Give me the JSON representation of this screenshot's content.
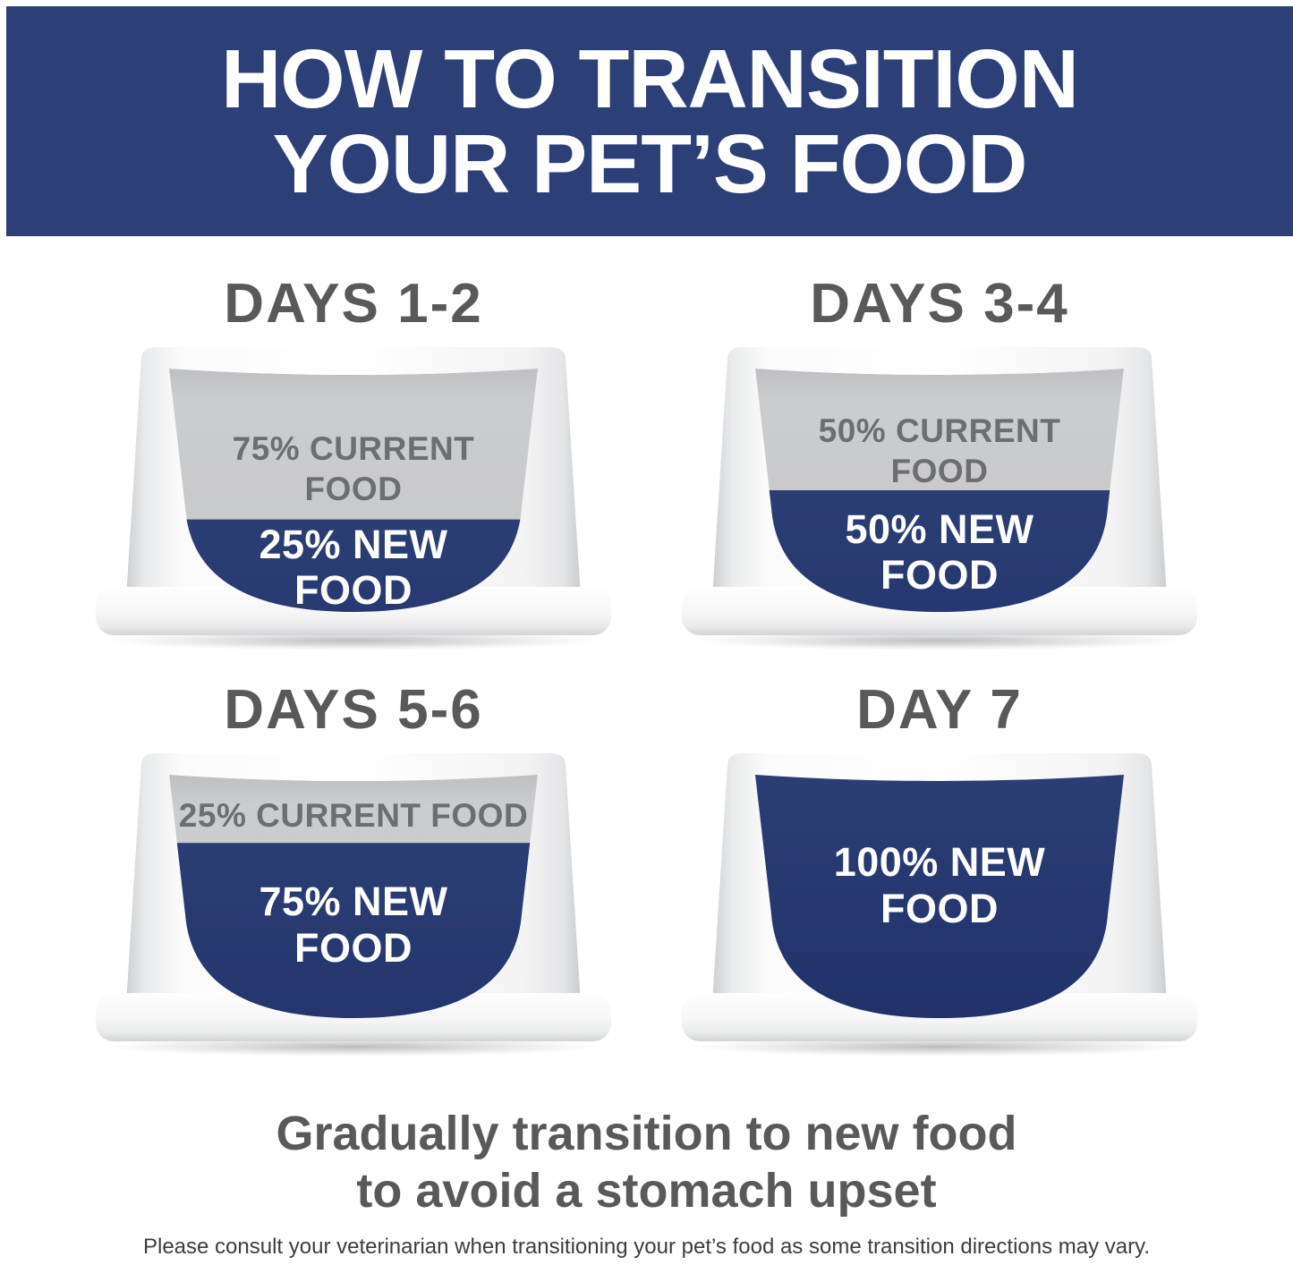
{
  "banner": {
    "line1": "HOW TO TRANSITION",
    "line2": "YOUR PET’S FOOD"
  },
  "panels": [
    {
      "heading": "DAYS 1-2",
      "current": {
        "line1": "75% CURRENT",
        "line2": "FOOD",
        "percent": 75
      },
      "new": {
        "line1": "25% NEW",
        "line2": "FOOD",
        "percent": 25
      },
      "fill_split": 0.62
    },
    {
      "heading": "DAYS 3-4",
      "current": {
        "line1": "50% CURRENT",
        "line2": "FOOD",
        "percent": 50
      },
      "new": {
        "line1": "50% NEW",
        "line2": "FOOD",
        "percent": 50
      },
      "fill_split": 0.5
    },
    {
      "heading": "DAYS 5-6",
      "current": {
        "line1": "25% CURRENT FOOD",
        "percent": 25
      },
      "new": {
        "line1": "75% NEW",
        "line2": "FOOD",
        "percent": 75
      },
      "fill_split": 0.28
    },
    {
      "heading": "DAY 7",
      "new": {
        "line1": "100% NEW",
        "line2": "FOOD",
        "percent": 100
      },
      "fill_split": 0
    }
  ],
  "footer": {
    "tagline_line1": "Gradually transition to new food",
    "tagline_line2": "to avoid a stomach upset",
    "disclaimer": "Please consult your veterinarian when transitioning your pet’s food as some transition directions may vary."
  },
  "colors": {
    "banner_bg": "#2d3f77",
    "banner_text": "#ffffff",
    "new_food_navy": "#25386e",
    "current_food_gray": "#c9cacc",
    "heading_gray": "#58595b",
    "current_label_gray": "#6d6e70",
    "new_label_white": "#ffffff",
    "bowl_white": "#f7f7f8"
  }
}
